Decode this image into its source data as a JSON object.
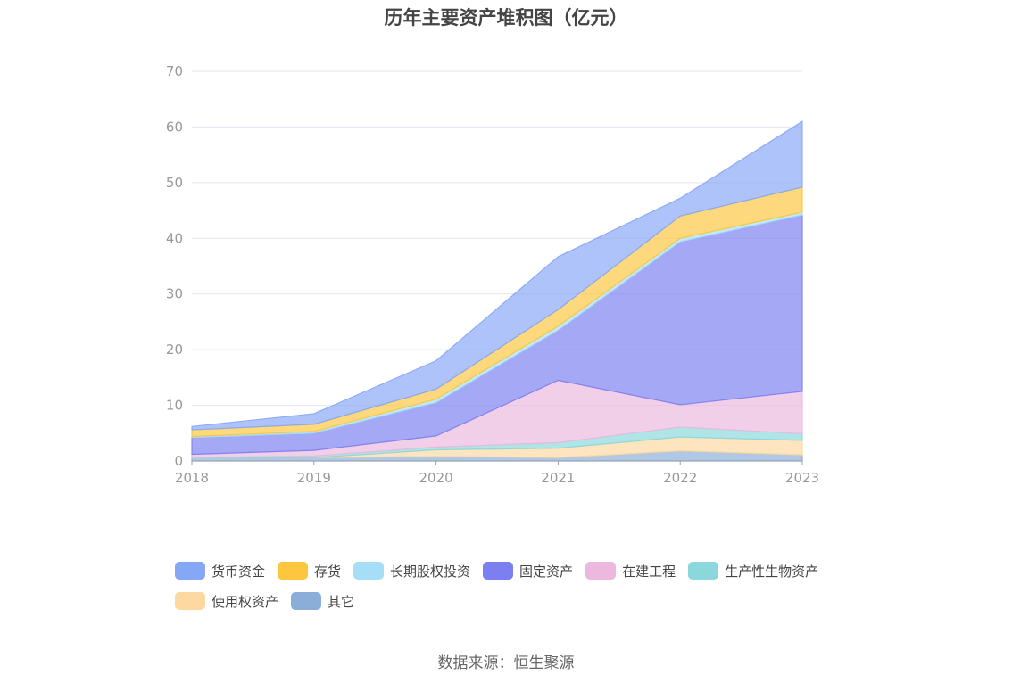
{
  "chart_data": {
    "type": "area",
    "stacked": true,
    "title": "历年主要资产堆积图（亿元）",
    "x": [
      "2018",
      "2019",
      "2020",
      "2021",
      "2022",
      "2023"
    ],
    "ylim": [
      0,
      70
    ],
    "yticks": [
      0,
      10,
      20,
      30,
      40,
      50,
      60,
      70
    ],
    "grid": true,
    "legend_position": "bottom",
    "series": [
      {
        "name": "其它",
        "color": "#8aaed8",
        "values": [
          0.5,
          0.6,
          0.8,
          0.6,
          1.8,
          1.1
        ]
      },
      {
        "name": "使用权资产",
        "color": "#fdd8a0",
        "values": [
          0.0,
          0.0,
          1.2,
          1.7,
          2.5,
          2.6
        ]
      },
      {
        "name": "生产性生物资产",
        "color": "#8ad8dc",
        "values": [
          0.1,
          0.3,
          0.5,
          1.0,
          1.8,
          1.2
        ]
      },
      {
        "name": "在建工程",
        "color": "#ecb8de",
        "values": [
          0.6,
          1.0,
          2.0,
          11.2,
          4.0,
          7.6
        ]
      },
      {
        "name": "固定资产",
        "color": "#7b7ff0",
        "values": [
          3.0,
          3.1,
          6.0,
          9.0,
          29.3,
          31.7
        ]
      },
      {
        "name": "长期股权投资",
        "color": "#a6def8",
        "values": [
          0.2,
          0.3,
          0.6,
          0.7,
          0.6,
          0.5
        ]
      },
      {
        "name": "存货",
        "color": "#fcc63e",
        "values": [
          1.2,
          1.3,
          1.8,
          3.0,
          4.0,
          4.5
        ]
      },
      {
        "name": "货币资金",
        "color": "#86a6f6",
        "values": [
          0.6,
          1.9,
          5.1,
          9.5,
          3.2,
          11.8
        ]
      }
    ]
  },
  "legend_order": [
    "货币资金",
    "存货",
    "长期股权投资",
    "固定资产",
    "在建工程",
    "生产性生物资产",
    "使用权资产",
    "其它"
  ],
  "source": "数据来源：恒生聚源"
}
